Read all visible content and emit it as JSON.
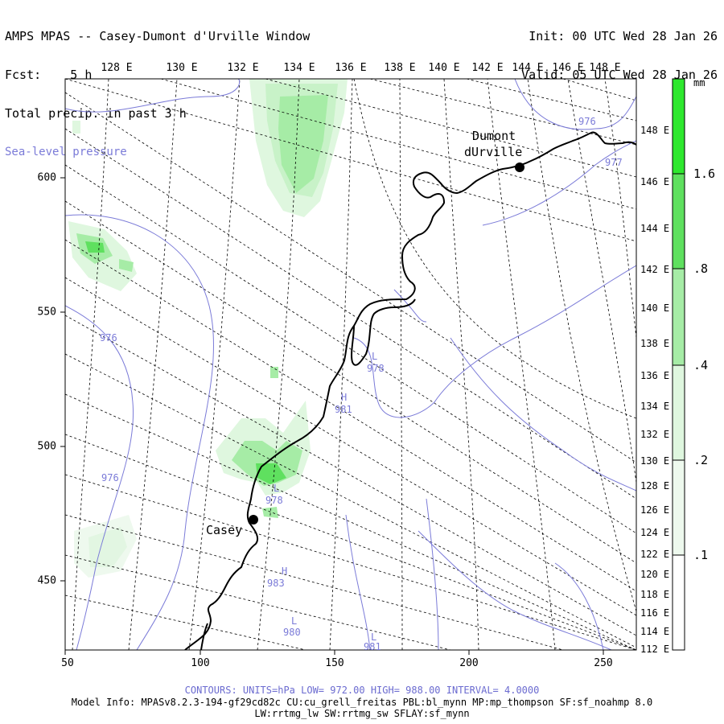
{
  "header": {
    "title": "AMPS MPAS -- Casey-Dumont d'Urville Window",
    "fcst_label": "Fcst:",
    "fcst_value": "5 h",
    "field1": "Total precip. in past 3 h",
    "field2": "Sea-level pressure",
    "init_line": "Init: 00 UTC Wed 28 Jan 26",
    "valid_line": "Valid: 05 UTC Wed 28 Jan 26"
  },
  "map": {
    "top_lon_labels": [
      "128 E",
      "130 E",
      "132 E",
      "134 E",
      "136 E",
      "138 E",
      "140 E",
      "142 E",
      "144 E",
      "146 E",
      "148 E"
    ],
    "x_tick_labels": [
      "50",
      "100",
      "150",
      "200",
      "250"
    ],
    "y_tick_labels": [
      "600",
      "550",
      "500",
      "450"
    ],
    "right_lat_labels": [
      "148 E",
      "146 E",
      "144 E",
      "142 E",
      "140 E",
      "138 E",
      "136 E",
      "134 E",
      "132 E",
      "130 E",
      "128 E",
      "126 E",
      "124 E",
      "122 E",
      "120 E",
      "118 E",
      "116 E",
      "114 E",
      "112 E"
    ],
    "stations": [
      {
        "name_line1": "Dumont",
        "name_line2": "dUrville"
      },
      {
        "name_line1": "Casey",
        "name_line2": ""
      }
    ],
    "pressure_labels": [
      "976",
      "977",
      "976",
      "976",
      "978",
      "981",
      "978",
      "983",
      "980",
      "981"
    ],
    "pressure_centers": [
      "L",
      "H",
      "L",
      "H",
      "L",
      "L"
    ],
    "colors": {
      "isobar": "#7b7bd8",
      "precip_light": "#dff7df",
      "precip_mid": "#a6eca6",
      "precip_strong": "#5fe05f",
      "precip_max": "#2ee82e",
      "coast": "#000000"
    }
  },
  "colorbar": {
    "units": "mm",
    "levels": [
      ".1",
      ".2",
      ".4",
      ".8",
      "1.6"
    ]
  },
  "footer": {
    "contours": "CONTOURS:  UNITS=hPa  LOW=  972.00      HIGH=  988.00      INTERVAL=   4.0000",
    "model_info": "Model Info: MPASv8.2.3-194-gf29cd82c CU:cu_grell_freitas PBL:bl_mynn MP:mp_thompson SF:sf_noahmp 8.0",
    "model_info2": "LW:rrtmg_lw SW:rrtmg_sw SFLAY:sf_mynn"
  }
}
